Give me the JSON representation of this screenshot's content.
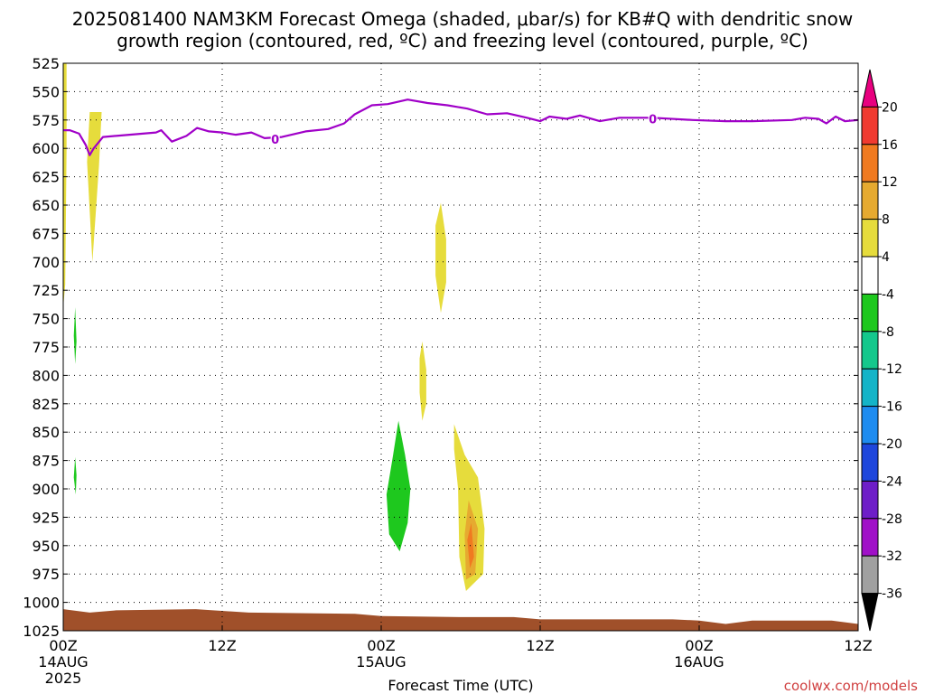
{
  "title": {
    "line1": "2025081400 NAM3KM Forecast Omega (shaded, μbar/s) for KB#Q with dendritic snow",
    "line2": "growth region (contoured, red, ºC) and freezing level (contoured, purple, ºC)"
  },
  "xaxis_label": "Forecast Time (UTC)",
  "credit": "coolwx.com/models",
  "chart_data": {
    "type": "heatmap",
    "title": "2025081400 NAM3KM Forecast Omega (shaded, μbar/s) for KB#Q with dendritic snow growth region (contoured, red, ºC) and freezing level (contoured, purple, ºC)",
    "xlabel": "Forecast Time (UTC)",
    "ylabel": "",
    "xlim_hours": [
      0,
      60
    ],
    "ylim_hpa": [
      1025,
      525
    ],
    "y_ticks": [
      525,
      550,
      575,
      600,
      625,
      650,
      675,
      700,
      725,
      750,
      775,
      800,
      825,
      850,
      875,
      900,
      925,
      950,
      975,
      1000,
      1025
    ],
    "x_ticks": [
      {
        "hour": 0,
        "label": "00Z",
        "date": "14AUG",
        "year": "2025"
      },
      {
        "hour": 12,
        "label": "12Z",
        "date": "",
        "year": ""
      },
      {
        "hour": 24,
        "label": "00Z",
        "date": "15AUG",
        "year": ""
      },
      {
        "hour": 36,
        "label": "12Z",
        "date": "",
        "year": ""
      },
      {
        "hour": 48,
        "label": "00Z",
        "date": "16AUG",
        "year": ""
      },
      {
        "hour": 60,
        "label": "12Z",
        "date": "",
        "year": ""
      }
    ],
    "grid": true,
    "colorbar": {
      "levels": [
        20,
        16,
        12,
        8,
        4,
        -4,
        -8,
        -12,
        -16,
        -20,
        -24,
        -28,
        -32,
        -36
      ],
      "colors": [
        "#e8007f",
        "#f03a30",
        "#f07a20",
        "#e6aa30",
        "#e6dc3c",
        "#ffffff",
        "#1ec81e",
        "#14c88c",
        "#14b4c8",
        "#1e8cf0",
        "#1e46dc",
        "#6e1ec8",
        "#a010c8",
        "#a0a0a0",
        "#000000"
      ],
      "units": "μbar/s"
    },
    "freezing_level": {
      "color": "#a000c8",
      "contour_label": "0",
      "label_points": [
        {
          "hour": 16.0,
          "p": 592
        },
        {
          "hour": 44.5,
          "p": 574
        }
      ],
      "points": [
        [
          0,
          584
        ],
        [
          0.5,
          584
        ],
        [
          1.2,
          587
        ],
        [
          1.7,
          597
        ],
        [
          2.0,
          606
        ],
        [
          2.3,
          600
        ],
        [
          3.0,
          590
        ],
        [
          5,
          588
        ],
        [
          7,
          586
        ],
        [
          7.4,
          584
        ],
        [
          8.2,
          594
        ],
        [
          9.3,
          589
        ],
        [
          10.1,
          582
        ],
        [
          11.0,
          585
        ],
        [
          12.0,
          586
        ],
        [
          13.0,
          588
        ],
        [
          14.2,
          586
        ],
        [
          15.2,
          591
        ],
        [
          16.5,
          590
        ],
        [
          18.3,
          585
        ],
        [
          20.0,
          583
        ],
        [
          21.2,
          578
        ],
        [
          22.0,
          570
        ],
        [
          23.3,
          562
        ],
        [
          24.5,
          561
        ],
        [
          26.0,
          557
        ],
        [
          27.5,
          560
        ],
        [
          29.0,
          562
        ],
        [
          30.5,
          565
        ],
        [
          32.0,
          570
        ],
        [
          33.5,
          569
        ],
        [
          35.0,
          573
        ],
        [
          36.0,
          576
        ],
        [
          36.7,
          572
        ],
        [
          38.0,
          574
        ],
        [
          39.0,
          571
        ],
        [
          40.5,
          576
        ],
        [
          42.0,
          573
        ],
        [
          43.0,
          573
        ],
        [
          44.5,
          573
        ],
        [
          47.5,
          575
        ],
        [
          50.0,
          576
        ],
        [
          52.0,
          576
        ],
        [
          55.0,
          575
        ],
        [
          56.0,
          573
        ],
        [
          57.0,
          574
        ],
        [
          57.6,
          578
        ],
        [
          58.3,
          572
        ],
        [
          59.0,
          576
        ],
        [
          60.0,
          575
        ]
      ]
    },
    "omega_regions": [
      {
        "value": 4,
        "color": "#e6dc3c",
        "points": [
          [
            0,
            525
          ],
          [
            0.25,
            525
          ],
          [
            0.25,
            600
          ],
          [
            0.15,
            720
          ],
          [
            0.0,
            740
          ]
        ]
      },
      {
        "value": 4,
        "color": "#e6dc3c",
        "points": [
          [
            2.0,
            568
          ],
          [
            2.9,
            568
          ],
          [
            2.7,
            615
          ],
          [
            2.2,
            700
          ],
          [
            1.8,
            612
          ]
        ]
      },
      {
        "value": 4,
        "color": "#e6dc3c",
        "points": [
          [
            28.5,
            648
          ],
          [
            28.9,
            680
          ],
          [
            28.9,
            718
          ],
          [
            28.5,
            745
          ],
          [
            28.1,
            712
          ],
          [
            28.1,
            668
          ]
        ]
      },
      {
        "value": 4,
        "color": "#e6dc3c",
        "points": [
          [
            27.1,
            770
          ],
          [
            27.4,
            795
          ],
          [
            27.4,
            825
          ],
          [
            27.1,
            840
          ],
          [
            26.9,
            815
          ],
          [
            26.9,
            785
          ]
        ]
      },
      {
        "value": 4,
        "color": "#e6dc3c",
        "points": [
          [
            29.5,
            843
          ],
          [
            30.3,
            870
          ],
          [
            31.3,
            890
          ],
          [
            31.8,
            935
          ],
          [
            31.7,
            975
          ],
          [
            30.4,
            990
          ],
          [
            29.9,
            960
          ],
          [
            29.8,
            900
          ],
          [
            29.5,
            865
          ]
        ]
      },
      {
        "value": 8,
        "color": "#e6aa30",
        "points": [
          [
            30.6,
            910
          ],
          [
            31.3,
            935
          ],
          [
            31.1,
            975
          ],
          [
            30.4,
            980
          ],
          [
            30.3,
            940
          ]
        ]
      },
      {
        "value": 12,
        "color": "#f07a20",
        "points": [
          [
            30.8,
            930
          ],
          [
            31.0,
            960
          ],
          [
            30.7,
            970
          ],
          [
            30.5,
            945
          ]
        ]
      },
      {
        "value": -4,
        "color": "#1ec81e",
        "points": [
          [
            0.9,
            740
          ],
          [
            1.0,
            770
          ],
          [
            0.9,
            790
          ],
          [
            0.8,
            765
          ]
        ]
      },
      {
        "value": -4,
        "color": "#1ec81e",
        "points": [
          [
            0.9,
            872
          ],
          [
            1.0,
            888
          ],
          [
            0.95,
            905
          ],
          [
            0.8,
            890
          ]
        ]
      },
      {
        "value": -4,
        "color": "#1ec81e",
        "points": [
          [
            25.3,
            840
          ],
          [
            25.8,
            870
          ],
          [
            26.2,
            900
          ],
          [
            26.0,
            930
          ],
          [
            25.4,
            955
          ],
          [
            24.6,
            940
          ],
          [
            24.4,
            905
          ],
          [
            24.9,
            870
          ]
        ]
      }
    ],
    "terrain": {
      "color": "#a0502a",
      "points": [
        [
          0,
          1006
        ],
        [
          2,
          1009
        ],
        [
          4,
          1007
        ],
        [
          10,
          1006
        ],
        [
          14,
          1009
        ],
        [
          22,
          1010
        ],
        [
          24,
          1012
        ],
        [
          30,
          1013
        ],
        [
          34,
          1013
        ],
        [
          36,
          1015
        ],
        [
          42,
          1015
        ],
        [
          46,
          1015
        ],
        [
          48,
          1016
        ],
        [
          50,
          1019
        ],
        [
          52,
          1016
        ],
        [
          58,
          1016
        ],
        [
          60,
          1019
        ]
      ]
    }
  }
}
